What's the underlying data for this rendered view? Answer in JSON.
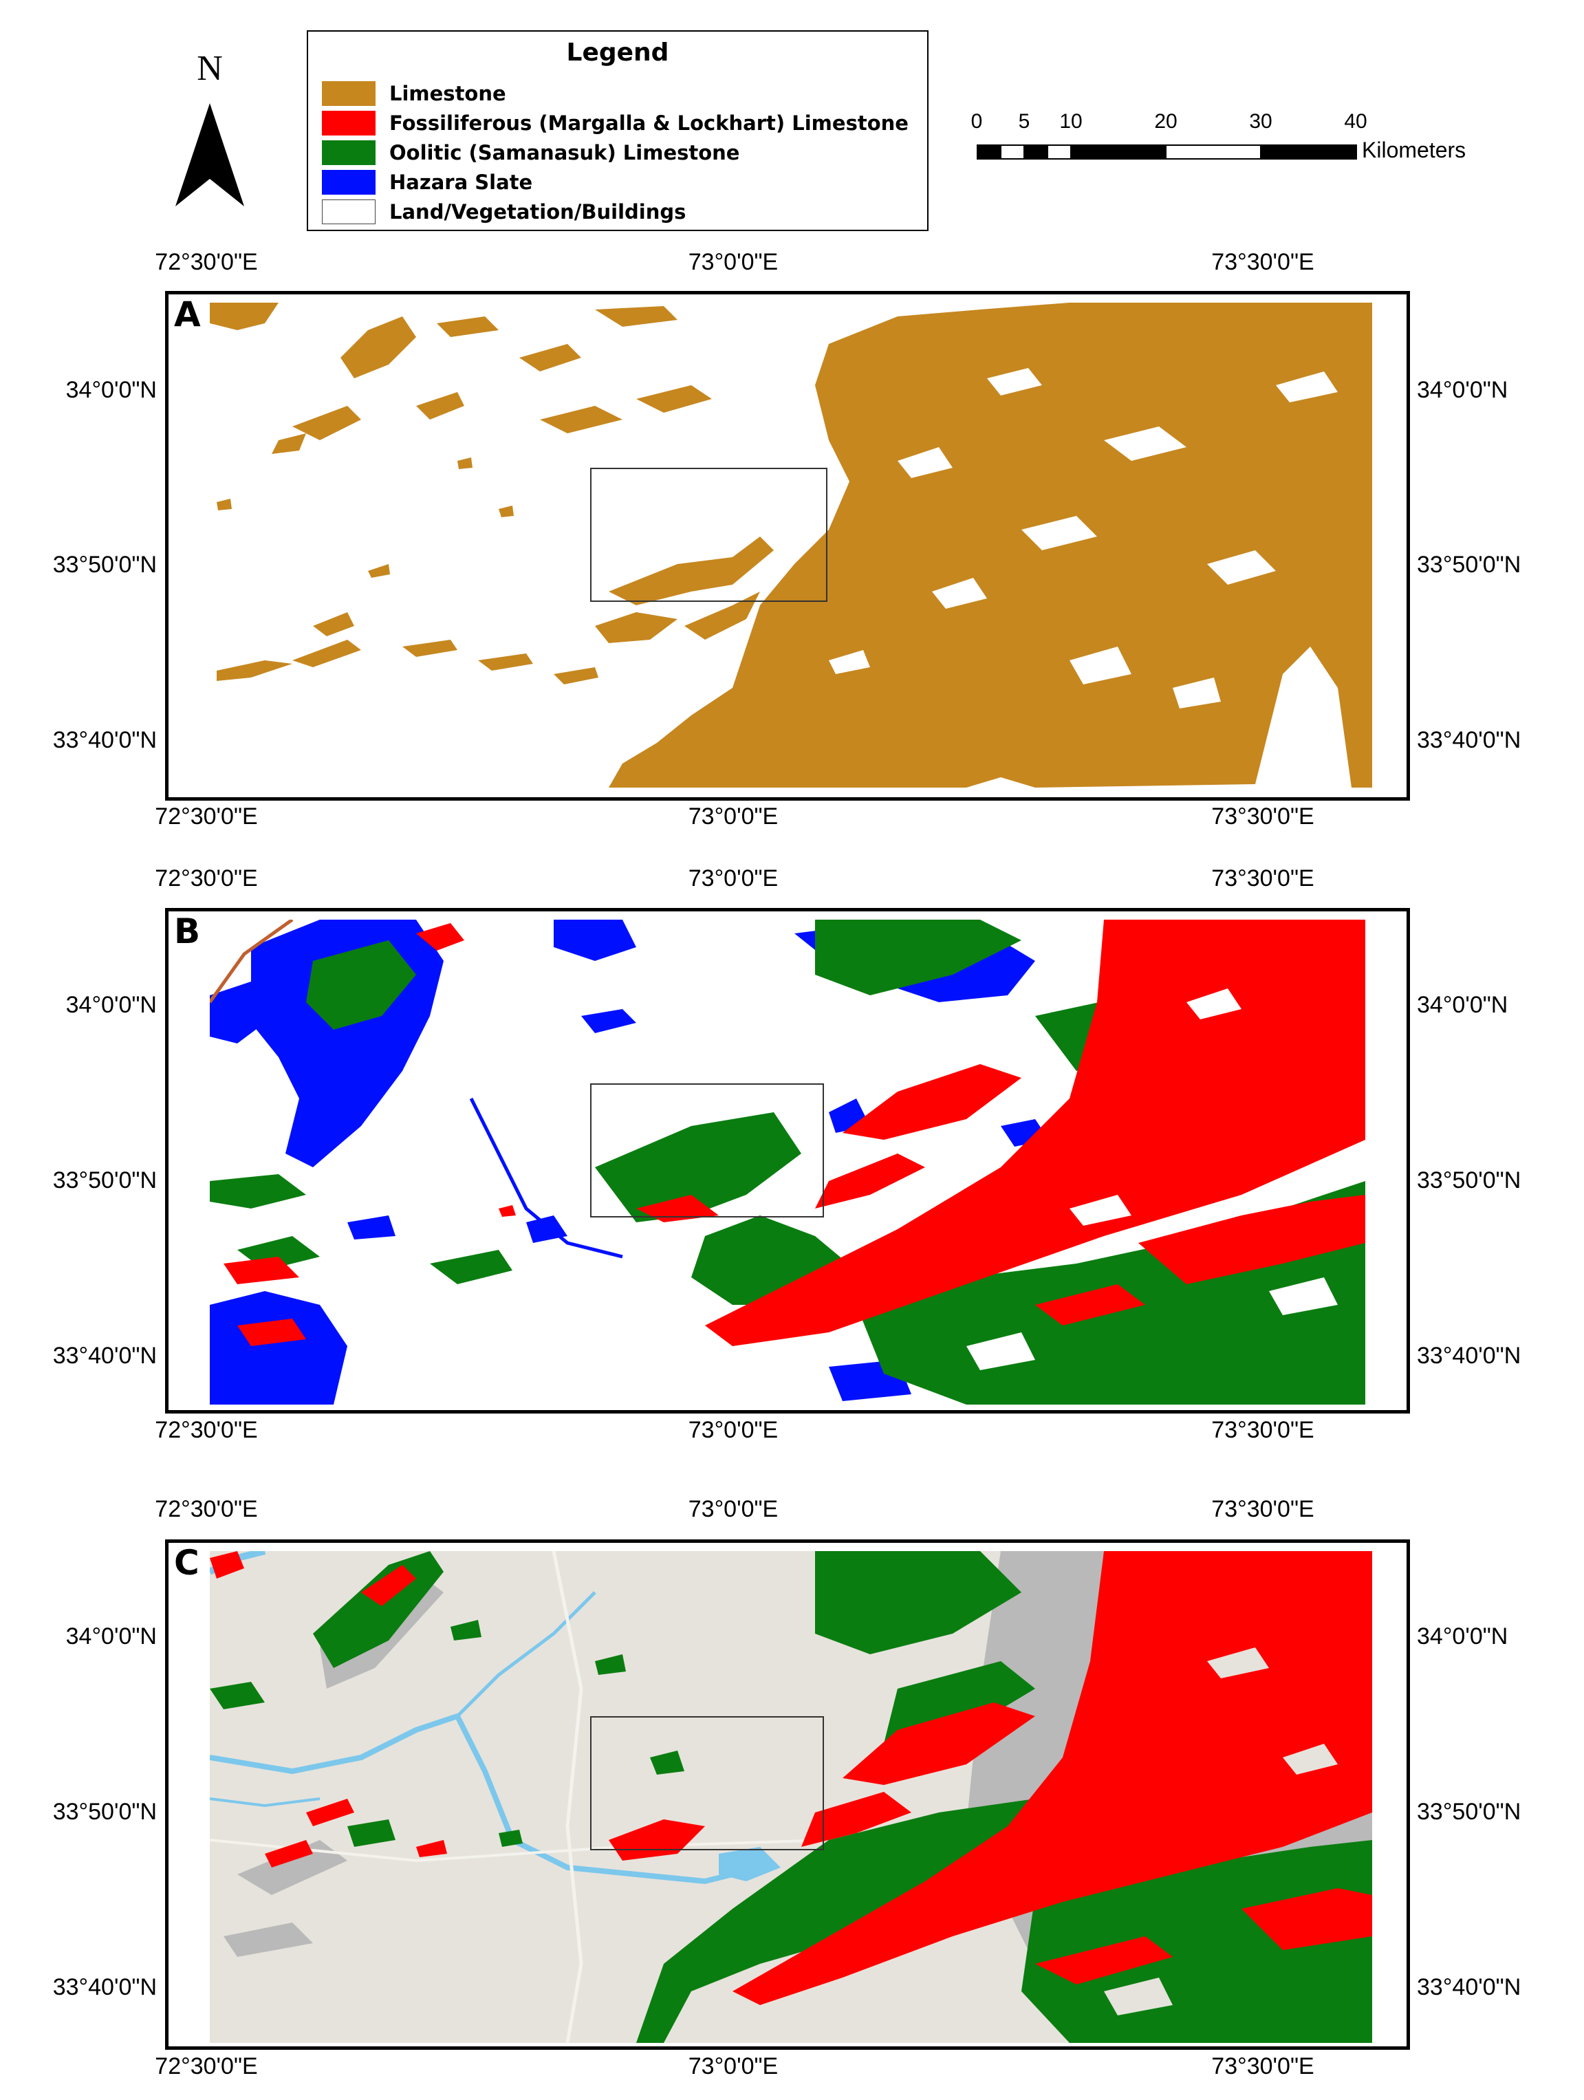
{
  "north_arrow": {
    "letter": "N"
  },
  "legend": {
    "title": "Legend",
    "items": [
      {
        "label": "Limestone",
        "color": "#c6871f"
      },
      {
        "label": "Fossiliferous (Margalla & Lockhart) Limestone",
        "color": "#ff0000"
      },
      {
        "label": "Oolitic (Samanasuk) Limestone",
        "color": "#0a7d10"
      },
      {
        "label": "Hazara Slate",
        "color": "#0010ff"
      },
      {
        "label": "Land/Vegetation/Buildings",
        "color": "#ffffff"
      }
    ]
  },
  "scale_bar": {
    "ticks": [
      "0",
      "5",
      "10",
      "20",
      "30",
      "40"
    ],
    "unit": "Kilometers"
  },
  "graticule": {
    "longitudes": [
      "72°30'0\"E",
      "73°0'0\"E",
      "73°30'0\"E"
    ],
    "latitudes": [
      "34°0'0\"N",
      "33°50'0\"N",
      "33°40'0\"N"
    ]
  },
  "panels": [
    {
      "letter": "A",
      "classes": [
        "Limestone"
      ]
    },
    {
      "letter": "B",
      "classes": [
        "Fossiliferous (Margalla & Lockhart) Limestone",
        "Oolitic (Samanasuk) Limestone",
        "Hazara Slate"
      ]
    },
    {
      "letter": "C",
      "classes": [
        "Fossiliferous (Margalla & Lockhart) Limestone",
        "Oolitic (Samanasuk) Limestone"
      ]
    }
  ]
}
